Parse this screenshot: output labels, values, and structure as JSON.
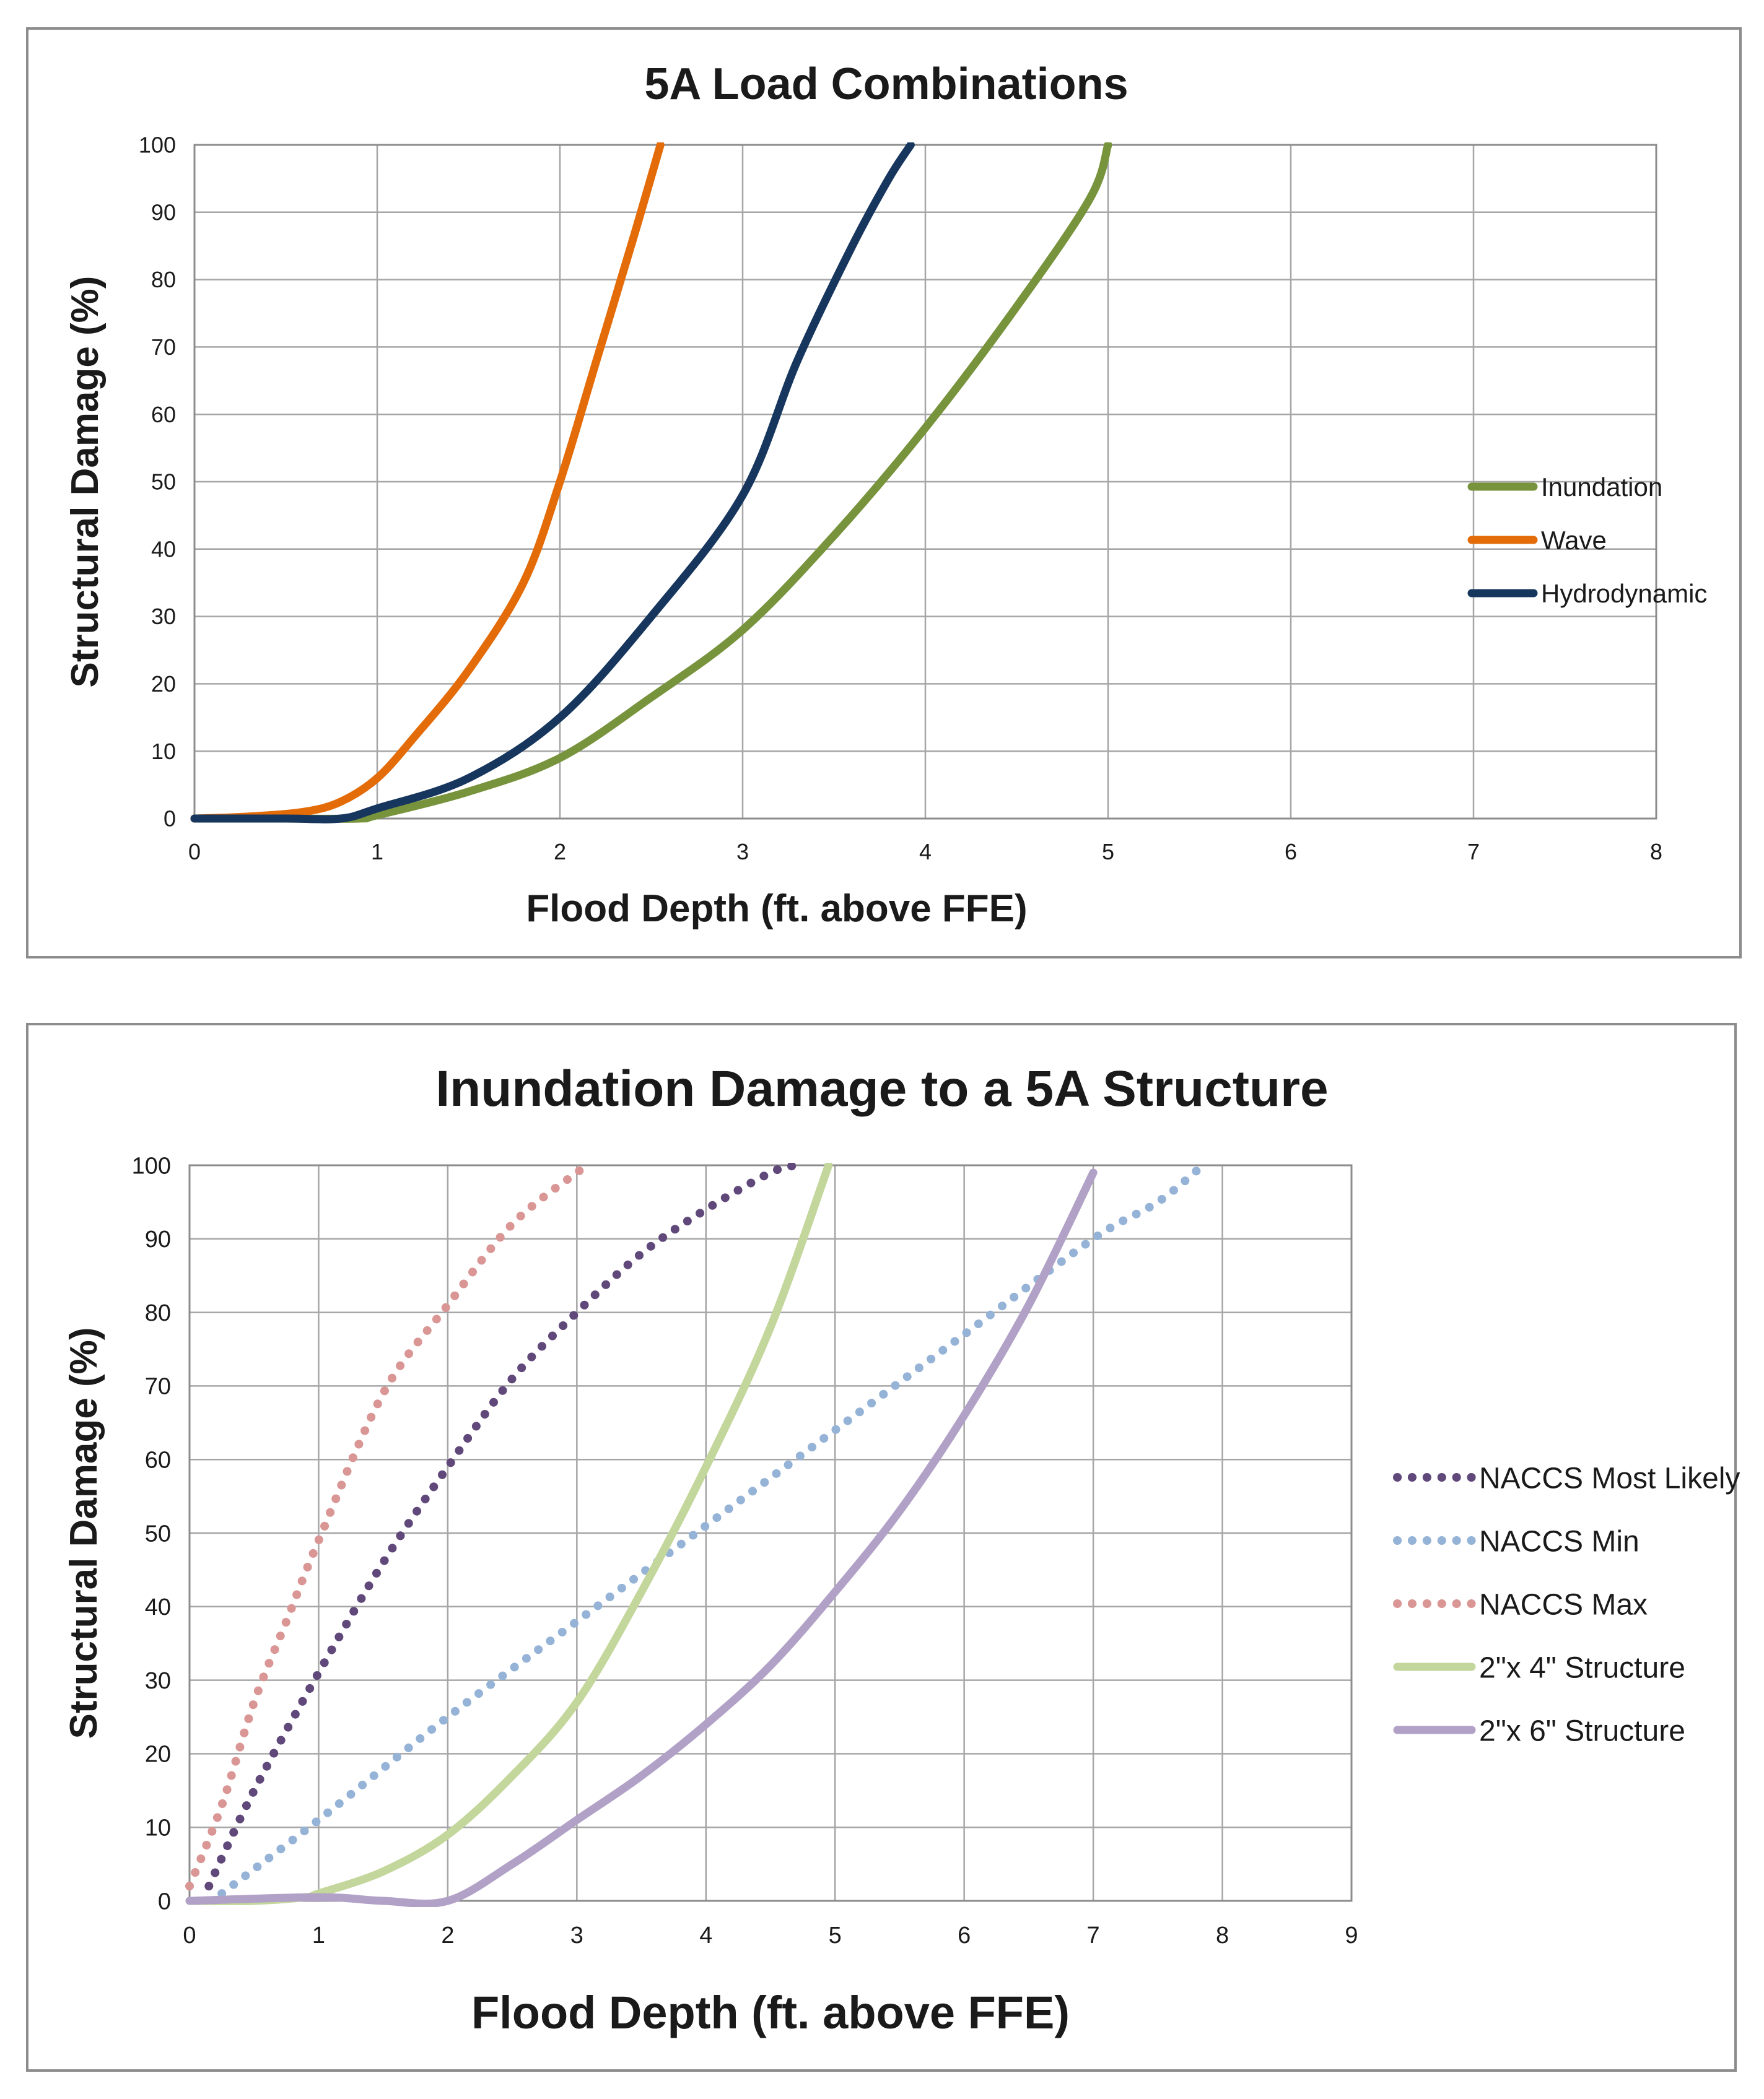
{
  "chart_data": [
    {
      "type": "line",
      "title": "5A Load Combinations",
      "xlabel": "Flood Depth (ft. above FFE)",
      "ylabel": "Structural Damage (%)",
      "xlim": [
        0,
        8
      ],
      "ylim": [
        0,
        100
      ],
      "xticks": [
        "0",
        "1",
        "2",
        "3",
        "4",
        "5",
        "6",
        "7",
        "8"
      ],
      "yticks": [
        "0",
        "10",
        "20",
        "30",
        "40",
        "50",
        "60",
        "70",
        "80",
        "90",
        "100"
      ],
      "grid": true,
      "legend_position": "right",
      "series": [
        {
          "name": "Inundation",
          "color": "#77933c",
          "style": "solid",
          "x": [
            0,
            0.5,
            0.9,
            1.0,
            1.5,
            2.0,
            2.5,
            3.0,
            3.5,
            4.0,
            4.5,
            4.9,
            5.0
          ],
          "y": [
            0,
            0,
            0,
            0.5,
            4,
            9,
            18,
            28,
            42,
            58,
            76,
            92,
            100
          ]
        },
        {
          "name": "Wave",
          "color": "#e36c09",
          "style": "solid",
          "x": [
            0,
            0.3,
            0.6,
            0.8,
            1.0,
            1.2,
            1.5,
            1.8,
            2.0,
            2.2,
            2.4,
            2.55
          ],
          "y": [
            0,
            0.3,
            1,
            2.5,
            6,
            12,
            22,
            35,
            50,
            68,
            86,
            100
          ]
        },
        {
          "name": "Hydrodynamic",
          "color": "#17365d",
          "style": "solid",
          "x": [
            0,
            0.5,
            0.8,
            1.0,
            1.5,
            2.0,
            2.5,
            3.0,
            3.3,
            3.6,
            3.8,
            3.92
          ],
          "y": [
            0,
            0,
            0,
            1.5,
            6,
            15,
            30,
            48,
            68,
            85,
            95,
            100
          ]
        }
      ]
    },
    {
      "type": "line",
      "title": "Inundation Damage to a 5A Structure",
      "xlabel": "Flood Depth (ft. above FFE)",
      "ylabel": "Structural Damage (%)",
      "xlim": [
        0,
        9
      ],
      "ylim": [
        0,
        100
      ],
      "xticks": [
        "0",
        "1",
        "2",
        "3",
        "4",
        "5",
        "6",
        "7",
        "8",
        "9"
      ],
      "yticks": [
        "0",
        "10",
        "20",
        "30",
        "40",
        "50",
        "60",
        "70",
        "80",
        "90",
        "100"
      ],
      "grid": true,
      "legend_position": "right",
      "series": [
        {
          "name": "NACCS Most Likely",
          "color": "#60497a",
          "style": "dotted",
          "x": [
            0.15,
            0.5,
            1.0,
            1.5,
            2.0,
            2.5,
            3.0,
            3.5,
            4.0,
            4.5,
            4.7
          ],
          "y": [
            2,
            15,
            31,
            46,
            59,
            71,
            80,
            88,
            94,
            99,
            100
          ]
        },
        {
          "name": "NACCS Min",
          "color": "#95b3d7",
          "style": "dotted",
          "x": [
            0.25,
            1.0,
            2.0,
            3.0,
            4.0,
            5.0,
            6.0,
            7.0,
            7.5,
            7.85
          ],
          "y": [
            1,
            11,
            25,
            38,
            51,
            64,
            77,
            90,
            95,
            100
          ]
        },
        {
          "name": "NACCS Max",
          "color": "#d99694",
          "style": "dotted",
          "x": [
            0,
            0.25,
            0.5,
            0.75,
            1.0,
            1.5,
            2.0,
            2.5,
            3.0,
            3.1
          ],
          "y": [
            2,
            13,
            27,
            38,
            49,
            69,
            81,
            92,
            99,
            100
          ]
        },
        {
          "name": "2\"x 4\" Structure",
          "color": "#c3d69b",
          "style": "solid",
          "x": [
            0,
            0.5,
            0.9,
            1.0,
            1.5,
            2.0,
            2.5,
            3.0,
            3.5,
            4.0,
            4.5,
            4.95
          ],
          "y": [
            0,
            0,
            0.5,
            1,
            4,
            9,
            17,
            27,
            42,
            59,
            78,
            100
          ]
        },
        {
          "name": "2\"x 6\" Structure",
          "color": "#b2a1c7",
          "style": "solid",
          "x": [
            0,
            1.0,
            1.5,
            2.0,
            2.5,
            3.0,
            3.5,
            4.0,
            4.5,
            5.0,
            5.5,
            6.0,
            6.5,
            7.0
          ],
          "y": [
            0,
            0.5,
            0,
            0,
            5,
            11,
            17,
            24,
            32,
            42,
            53,
            66,
            81,
            99
          ]
        }
      ]
    }
  ]
}
